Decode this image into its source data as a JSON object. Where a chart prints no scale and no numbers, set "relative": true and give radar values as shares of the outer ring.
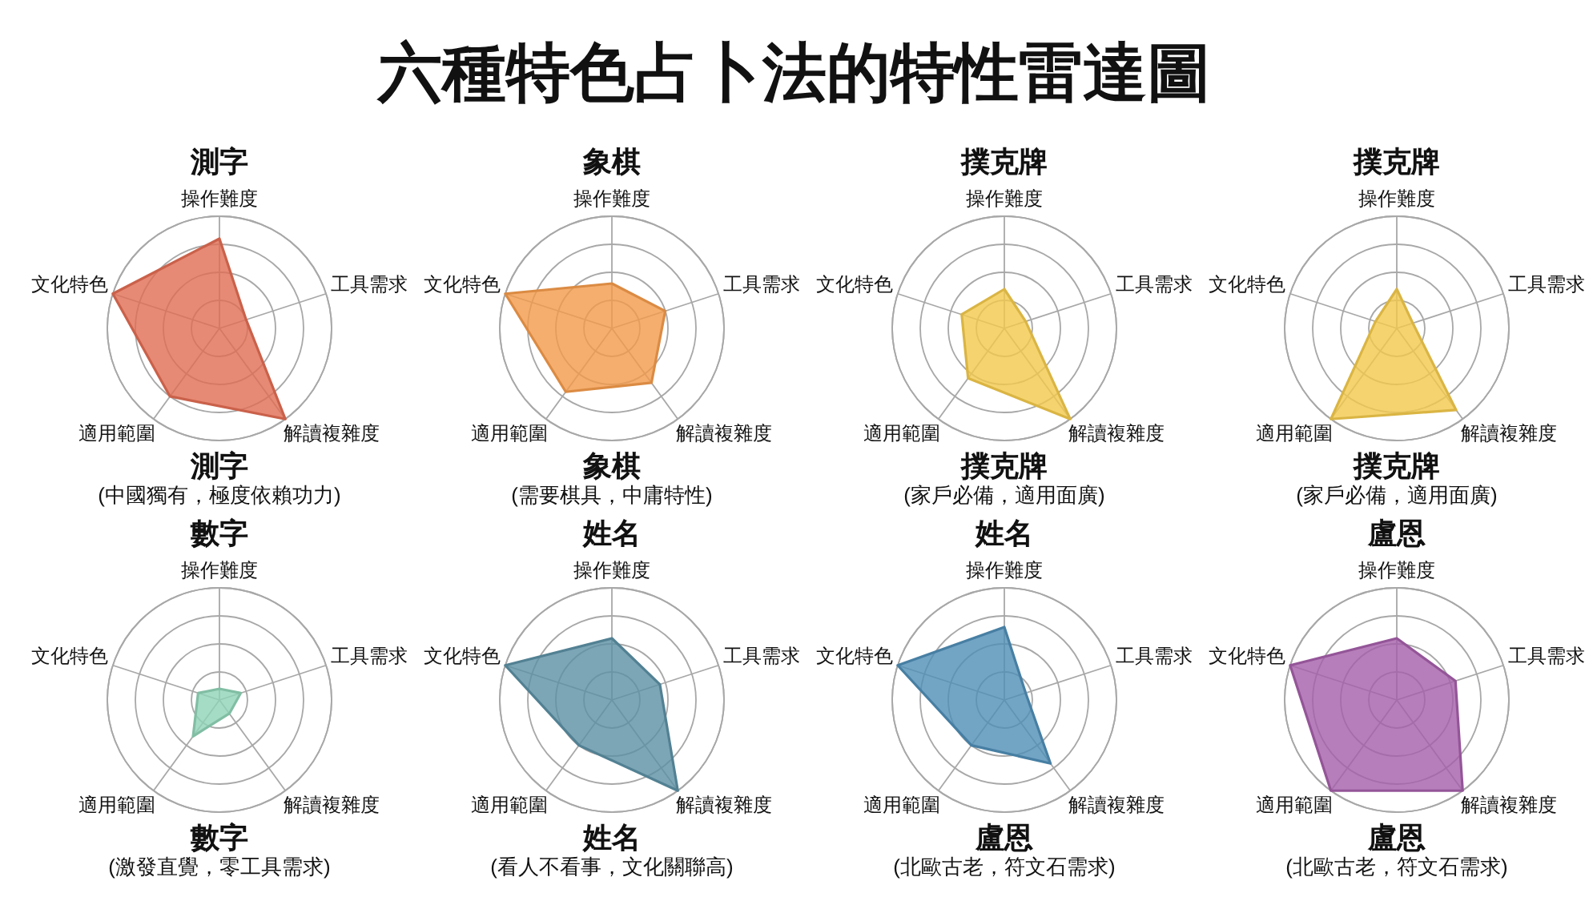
{
  "chart_data": [
    {
      "type": "other",
      "title": "六種特色占卜法的特性雷達圖"
    },
    {
      "type": "radar",
      "title": "測字",
      "categories": [
        "操作難度",
        "工具需求",
        "解讀複雜度",
        "適用範圍",
        "文化特色"
      ],
      "relative": true,
      "grid": true,
      "series": [
        {
          "color": "#e06c52",
          "values": [
            0.8,
            0.25,
            1,
            0.75,
            1
          ]
        }
      ],
      "annotations": [
        "測字",
        "(中國獨有，極度依賴功力)"
      ]
    },
    {
      "type": "radar",
      "title": "象棋",
      "categories": [
        "操作難度",
        "工具需求",
        "解讀複雜度",
        "適用範圍",
        "文化特色"
      ],
      "relative": true,
      "grid": true,
      "series": [
        {
          "color": "#f39a4a",
          "values": [
            0.4,
            0.5,
            0.6,
            0.7,
            1
          ]
        }
      ],
      "annotations": [
        "象棋",
        "(需要棋具，中庸特性)"
      ]
    },
    {
      "type": "radar",
      "title": "撲克牌",
      "categories": [
        "操作難度",
        "工具需求",
        "解讀複雜度",
        "適用範圍",
        "文化特色"
      ],
      "relative": true,
      "grid": true,
      "series": [
        {
          "color": "#f2c94c",
          "values": [
            0.35,
            0.2,
            1,
            0.55,
            0.4
          ]
        }
      ],
      "annotations": [
        "撲克牌",
        "(家戶必備，適用面廣)"
      ]
    },
    {
      "type": "radar",
      "title": "撲克牌",
      "categories": [
        "操作難度",
        "工具需求",
        "解讀複雜度",
        "適用範圍",
        "文化特色"
      ],
      "relative": true,
      "grid": true,
      "series": [
        {
          "color": "#f2c94c",
          "values": [
            0.35,
            0.15,
            0.9,
            1,
            0.2
          ]
        }
      ],
      "annotations": [
        "撲克牌",
        "(家戶必備，適用面廣)"
      ]
    },
    {
      "type": "radar",
      "title": "數字",
      "categories": [
        "操作難度",
        "工具需求",
        "解讀複雜度",
        "適用範圍",
        "文化特色"
      ],
      "relative": true,
      "grid": true,
      "series": [
        {
          "color": "#8fd3b6",
          "values": [
            0.1,
            0.2,
            0.15,
            0.4,
            0.2
          ]
        }
      ],
      "annotations": [
        "數字",
        "(激發直覺，零工具需求)"
      ]
    },
    {
      "type": "radar",
      "title": "姓名",
      "categories": [
        "操作難度",
        "工具需求",
        "解讀複雜度",
        "適用範圍",
        "文化特色"
      ],
      "relative": true,
      "grid": true,
      "series": [
        {
          "color": "#5b8fa3",
          "values": [
            0.55,
            0.45,
            1,
            0.5,
            1
          ]
        }
      ],
      "annotations": [
        "姓名",
        "(看人不看事，文化關聯高)"
      ]
    },
    {
      "type": "radar",
      "title": "姓名",
      "categories": [
        "操作難度",
        "工具需求",
        "解讀複雜度",
        "適用範圍",
        "文化特色"
      ],
      "relative": true,
      "grid": true,
      "series": [
        {
          "color": "#4f8db5",
          "values": [
            0.65,
            0.2,
            0.7,
            0.5,
            1
          ]
        }
      ],
      "annotations": [
        "盧恩",
        "(北歐古老，符文石需求)"
      ]
    },
    {
      "type": "radar",
      "title": "盧恩",
      "categories": [
        "操作難度",
        "工具需求",
        "解讀複雜度",
        "適用範圍",
        "文化特色"
      ],
      "relative": true,
      "grid": true,
      "series": [
        {
          "color": "#a45ea9",
          "values": [
            0.55,
            0.55,
            1,
            1,
            1
          ]
        }
      ],
      "annotations": [
        "盧恩",
        "(北歐古老，符文石需求)"
      ]
    }
  ]
}
